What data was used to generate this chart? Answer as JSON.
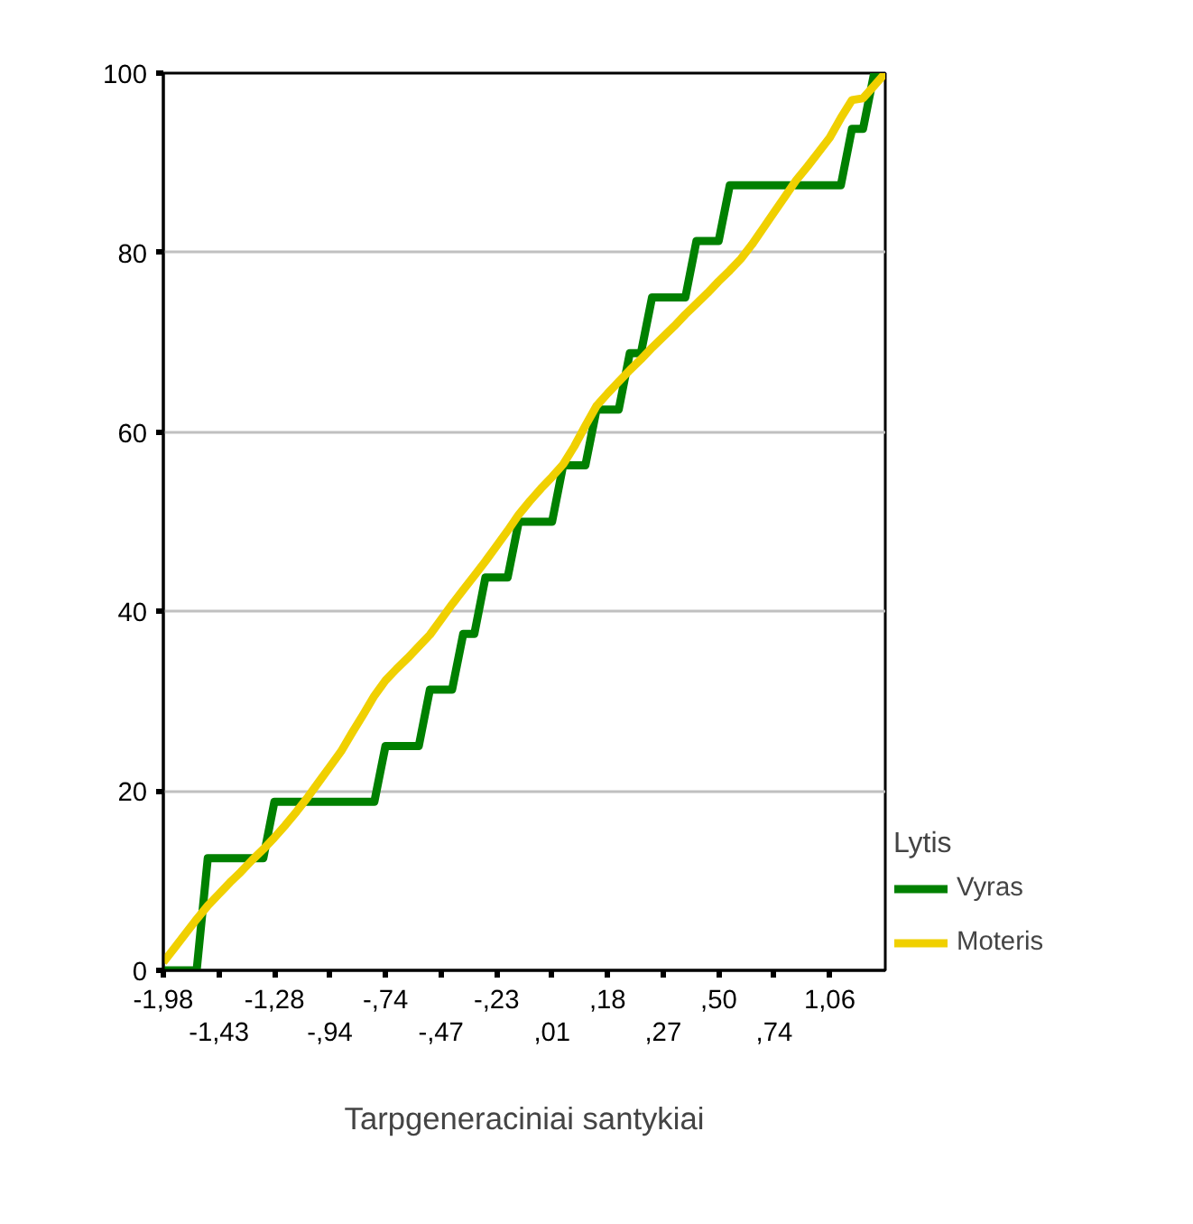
{
  "chart_data": {
    "type": "line",
    "xlabel": "Tarpgeneraciniai santykiai",
    "legend_title": "Lytis",
    "legend": "right",
    "grid": "y",
    "marker": "none",
    "line_style": "solid",
    "categories": [
      "-1,98",
      null,
      null,
      null,
      null,
      "-1,43",
      null,
      null,
      null,
      null,
      "-1,28",
      null,
      null,
      null,
      null,
      "-,94",
      null,
      null,
      null,
      null,
      "-,74",
      null,
      null,
      null,
      null,
      "-,47",
      null,
      null,
      null,
      null,
      "-,23",
      null,
      null,
      null,
      null,
      ",01",
      null,
      null,
      null,
      null,
      ",18",
      null,
      null,
      null,
      null,
      ",27",
      null,
      null,
      null,
      null,
      ",50",
      null,
      null,
      null,
      null,
      ",74",
      null,
      null,
      null,
      null,
      "1,06",
      null,
      null,
      null,
      null,
      null
    ],
    "ylim": [
      0,
      100
    ],
    "yticks": [
      0,
      20,
      40,
      60,
      80,
      100
    ],
    "series": [
      {
        "name": "Vyras",
        "color": "#008000",
        "values": [
          0,
          0,
          0,
          0,
          12.5,
          12.5,
          12.5,
          12.5,
          12.5,
          12.5,
          18.8,
          18.8,
          18.8,
          18.8,
          18.8,
          18.8,
          18.8,
          18.8,
          18.8,
          18.8,
          25,
          25,
          25,
          25,
          31.3,
          31.3,
          31.3,
          37.5,
          37.5,
          43.8,
          43.8,
          43.8,
          50,
          50,
          50,
          50,
          56.3,
          56.3,
          56.3,
          62.5,
          62.5,
          62.5,
          68.8,
          68.8,
          75,
          75,
          75,
          75,
          81.3,
          81.3,
          81.3,
          87.5,
          87.5,
          87.5,
          87.5,
          87.5,
          87.5,
          87.5,
          87.5,
          87.5,
          87.5,
          87.5,
          93.8,
          93.8,
          100,
          100
        ]
      },
      {
        "name": "Moteris",
        "color": "#f0d000",
        "values": [
          0.9,
          2.5,
          4.1,
          5.7,
          7.2,
          8.5,
          9.8,
          11.0,
          12.3,
          13.5,
          14.8,
          16.2,
          17.7,
          19.3,
          21.0,
          22.7,
          24.4,
          26.5,
          28.5,
          30.6,
          32.3,
          33.6,
          34.8,
          36.1,
          37.4,
          39.1,
          40.8,
          42.4,
          44.0,
          45.6,
          47.3,
          49.0,
          50.8,
          52.3,
          53.7,
          55.0,
          56.4,
          58.4,
          60.7,
          62.9,
          64.3,
          65.6,
          66.9,
          68.1,
          69.4,
          70.6,
          71.8,
          73.1,
          74.3,
          75.5,
          76.8,
          78.0,
          79.3,
          80.9,
          82.7,
          84.5,
          86.3,
          88.1,
          89.6,
          91.2,
          92.8,
          95.0,
          97.0,
          97.2,
          98.6,
          100
        ]
      }
    ]
  }
}
